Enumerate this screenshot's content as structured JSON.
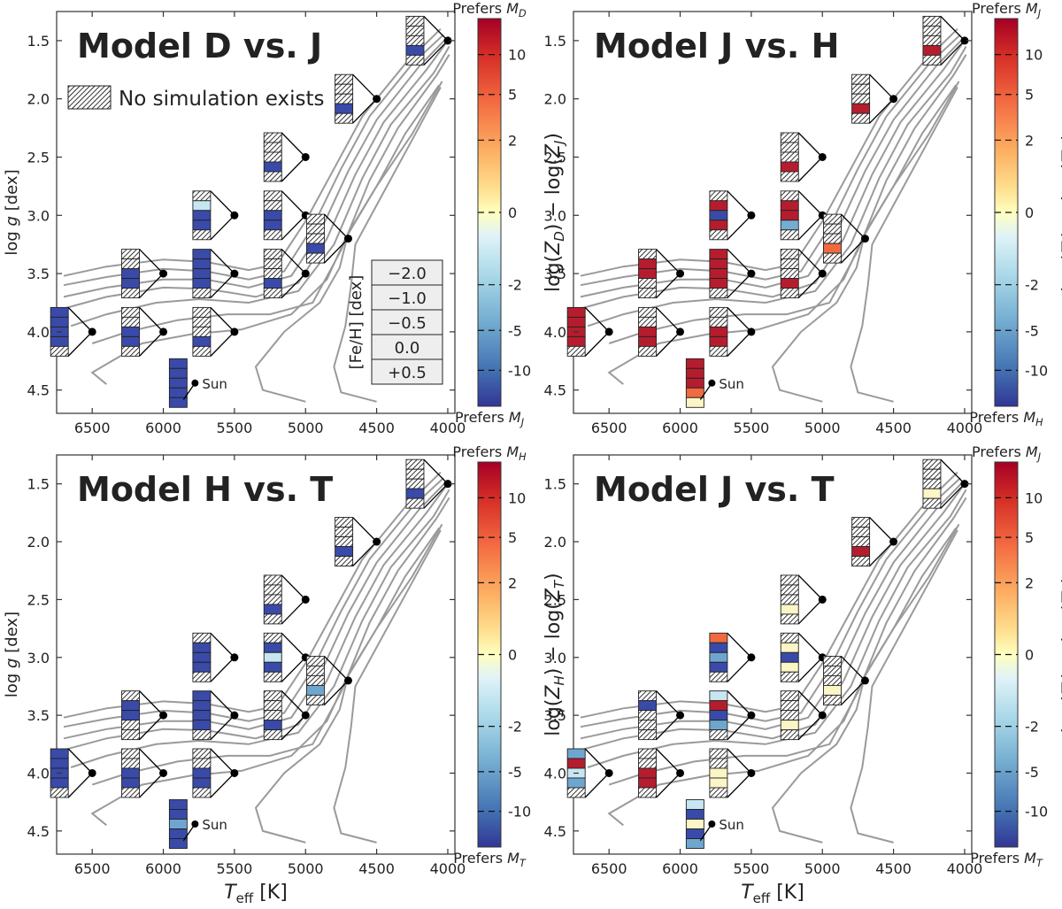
{
  "chart_data": {
    "type": "heatmap",
    "description_note": "",
    "x_axis": {
      "label_prefix": "T",
      "label_sub": "eff",
      "label_unit": "[K]",
      "lim": [
        6750,
        3950
      ],
      "ticks": [
        6500,
        6000,
        5500,
        5000,
        4500,
        4000
      ],
      "inverted": true
    },
    "y_axis": {
      "label_prefix": "log ",
      "label_var": "g",
      "label_unit": "[dex]",
      "lim": [
        4.7,
        1.25
      ],
      "ticks": [
        1.5,
        2.0,
        2.5,
        3.0,
        3.5,
        4.0,
        4.5
      ],
      "tick_labels": [
        "1.5",
        "2.0",
        "2.5",
        "3.0",
        "3.5",
        "4.0",
        "4.5"
      ],
      "inverted": true
    },
    "metallicity_rows": [
      "−2.0",
      "−1.0",
      "−0.5",
      "0.0",
      "+0.5"
    ],
    "metallicity_label": "[Fe/H] [dex]",
    "legend_hatch_label": "No simulation exists",
    "sun_label": "Sun",
    "grid_points": [
      {
        "teff": 6500,
        "logg": 4.0
      },
      {
        "teff": 6000,
        "logg": 3.5
      },
      {
        "teff": 6000,
        "logg": 4.0
      },
      {
        "teff": 5500,
        "logg": 3.0
      },
      {
        "teff": 5500,
        "logg": 3.5
      },
      {
        "teff": 5500,
        "logg": 4.0
      },
      {
        "teff": 5000,
        "logg": 2.5
      },
      {
        "teff": 5000,
        "logg": 3.0
      },
      {
        "teff": 5000,
        "logg": 3.5
      },
      {
        "teff": 4700,
        "logg": 3.2
      },
      {
        "teff": 4500,
        "logg": 2.0
      },
      {
        "teff": 4000,
        "logg": 1.5
      },
      {
        "teff": 5777,
        "logg": 4.44
      }
    ],
    "colorbar": {
      "ticks": [
        10,
        5,
        2,
        0,
        -2,
        -5,
        -10
      ],
      "tick_labels": [
        "10",
        "5",
        "2",
        "0",
        "-2",
        "-5",
        "-10"
      ],
      "colors": [
        "#313695",
        "#4575b4",
        "#74add1",
        "#abd9e9",
        "#e0f3f8",
        "#ffffbf",
        "#fee090",
        "#fdae61",
        "#f46d43",
        "#d73027",
        "#a50026"
      ]
    },
    "panels": [
      {
        "title": "Model D vs. J",
        "cb_top": "Prefers ",
        "cb_top_sym": "M",
        "cb_top_sub": "D",
        "cb_bottom": "Prefers ",
        "cb_bottom_sym": "M",
        "cb_bottom_sub": "J",
        "cb_label_a": "D",
        "cb_label_b": "J",
        "cells": [
          [
            "B",
            "B",
            "B",
            "B",
            "H"
          ],
          [
            "H",
            "H",
            "B",
            "B",
            "H"
          ],
          [
            "H",
            "H",
            "B",
            "B",
            "H"
          ],
          [
            "H",
            "L",
            "B",
            "B",
            "H"
          ],
          [
            "B",
            "B",
            "B",
            "B",
            "H"
          ],
          [
            "H",
            "H",
            "H",
            "B",
            "H"
          ],
          [
            "H",
            "H",
            "H",
            "B",
            "H"
          ],
          [
            "H",
            "H",
            "B",
            "B",
            "H"
          ],
          [
            "H",
            "H",
            "H",
            "B",
            "H"
          ],
          [
            "H",
            "H",
            "H",
            "B",
            "H"
          ],
          [
            "H",
            "H",
            "H",
            "B",
            "H"
          ],
          [
            "H",
            "H",
            "H",
            "B",
            "H"
          ],
          [
            "B",
            "B",
            "B",
            "B",
            "B"
          ]
        ]
      },
      {
        "title": "Model J vs. H",
        "cb_top": "Prefers ",
        "cb_top_sym": "M",
        "cb_top_sub": "J",
        "cb_bottom": "Prefers ",
        "cb_bottom_sym": "M",
        "cb_bottom_sub": "H",
        "cells": [
          [
            "R",
            "R",
            "R",
            "R",
            "H"
          ],
          [
            "H",
            "R",
            "R",
            "H",
            "H"
          ],
          [
            "H",
            "H",
            "R",
            "R",
            "H"
          ],
          [
            "H",
            "R",
            "B",
            "R",
            "H"
          ],
          [
            "R",
            "R",
            "R",
            "R",
            "H"
          ],
          [
            "H",
            "H",
            "R",
            "R",
            "H"
          ],
          [
            "H",
            "H",
            "H",
            "R",
            "H"
          ],
          [
            "H",
            "R",
            "R",
            "T",
            "H"
          ],
          [
            "H",
            "H",
            "H",
            "R",
            "H"
          ],
          [
            "H",
            "H",
            "H",
            "O",
            "H"
          ],
          [
            "H",
            "H",
            "H",
            "R",
            "H"
          ],
          [
            "H",
            "H",
            "H",
            "R",
            "H"
          ],
          [
            "R",
            "R",
            "R",
            "O",
            "Y"
          ]
        ]
      },
      {
        "title": "Model H vs. T",
        "cb_top": "Prefers ",
        "cb_top_sym": "M",
        "cb_top_sub": "H",
        "cb_bottom": "Prefers ",
        "cb_bottom_sym": "M",
        "cb_bottom_sub": "T",
        "cells": [
          [
            "B",
            "B",
            "B",
            "B",
            "H"
          ],
          [
            "H",
            "B",
            "B",
            "H",
            "H"
          ],
          [
            "H",
            "H",
            "B",
            "B",
            "H"
          ],
          [
            "H",
            "B",
            "B",
            "B",
            "H"
          ],
          [
            "B",
            "B",
            "B",
            "B",
            "H"
          ],
          [
            "H",
            "H",
            "B",
            "B",
            "H"
          ],
          [
            "H",
            "H",
            "H",
            "B",
            "H"
          ],
          [
            "H",
            "B",
            "L",
            "B",
            "H"
          ],
          [
            "H",
            "H",
            "H",
            "B",
            "H"
          ],
          [
            "H",
            "H",
            "H",
            "M",
            "H"
          ],
          [
            "H",
            "H",
            "H",
            "B",
            "H"
          ],
          [
            "H",
            "H",
            "H",
            "B",
            "H"
          ],
          [
            "B",
            "B",
            "M",
            "B",
            "B"
          ]
        ]
      },
      {
        "title": "Model J vs. T",
        "cb_top": "Prefers ",
        "cb_top_sym": "M",
        "cb_top_sub": "J",
        "cb_bottom": "Prefers ",
        "cb_bottom_sym": "M",
        "cb_bottom_sub": "T",
        "cells": [
          [
            "M",
            "R",
            "L",
            "M",
            "H"
          ],
          [
            "H",
            "B",
            "H",
            "H",
            "H"
          ],
          [
            "H",
            "H",
            "R",
            "R",
            "H"
          ],
          [
            "O",
            "B",
            "M",
            "B",
            "H"
          ],
          [
            "L",
            "R",
            "B",
            "M",
            "H"
          ],
          [
            "H",
            "H",
            "Y",
            "Y",
            "H"
          ],
          [
            "H",
            "H",
            "H",
            "Y",
            "H"
          ],
          [
            "H",
            "Y",
            "B",
            "Y",
            "H"
          ],
          [
            "H",
            "H",
            "H",
            "Y",
            "H"
          ],
          [
            "H",
            "H",
            "H",
            "Y",
            "H"
          ],
          [
            "H",
            "H",
            "H",
            "R",
            "H"
          ],
          [
            "H",
            "H",
            "H",
            "Y",
            "H"
          ],
          [
            "L",
            "B",
            "Y",
            "B",
            "M"
          ]
        ]
      }
    ]
  }
}
